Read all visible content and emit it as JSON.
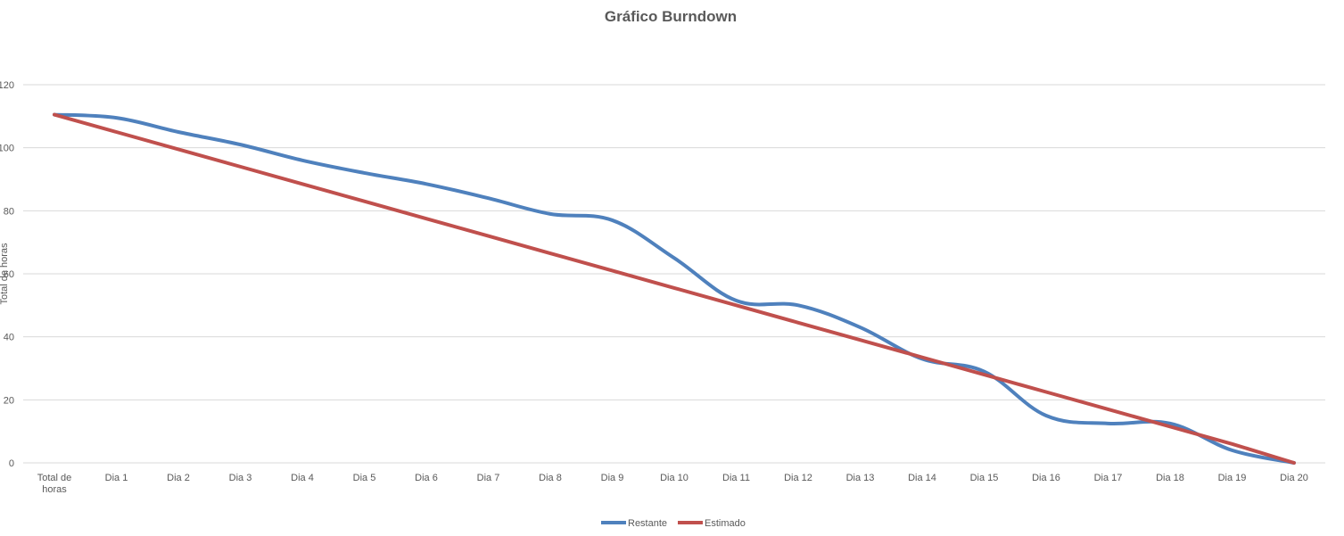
{
  "chart_data": {
    "type": "line",
    "title": "Gráfico Burndown",
    "xlabel": "",
    "ylabel": "Total de horas",
    "ylim": [
      0,
      120
    ],
    "yticks": [
      0,
      20,
      40,
      60,
      80,
      100,
      120
    ],
    "grid": true,
    "legend_position": "bottom",
    "categories": [
      "Total de horas",
      "Dia 1",
      "Dia 2",
      "Dia 3",
      "Dia 4",
      "Dia 5",
      "Dia 6",
      "Dia 7",
      "Dia 8",
      "Dia 9",
      "Dia 10",
      "Dia 11",
      "Dia 12",
      "Dia 13",
      "Dia 14",
      "Dia 15",
      "Dia 16",
      "Dia 17",
      "Dia 18",
      "Dia 19",
      "Dia 20"
    ],
    "series": [
      {
        "name": "Restante",
        "color": "#4f81bd",
        "values": [
          110.5,
          109.5,
          105,
          101,
          96,
          92,
          88.5,
          84,
          79,
          77,
          65,
          51.5,
          50,
          43,
          33,
          29,
          15,
          12.5,
          12.5,
          4,
          0
        ]
      },
      {
        "name": "Estimado",
        "color": "#c0504d",
        "values": [
          110.5,
          105,
          99.5,
          94,
          88.5,
          83,
          77.5,
          72,
          66.5,
          61,
          55.5,
          50,
          44.5,
          39,
          33.5,
          28,
          22.5,
          17,
          11.5,
          6,
          0
        ]
      }
    ]
  }
}
